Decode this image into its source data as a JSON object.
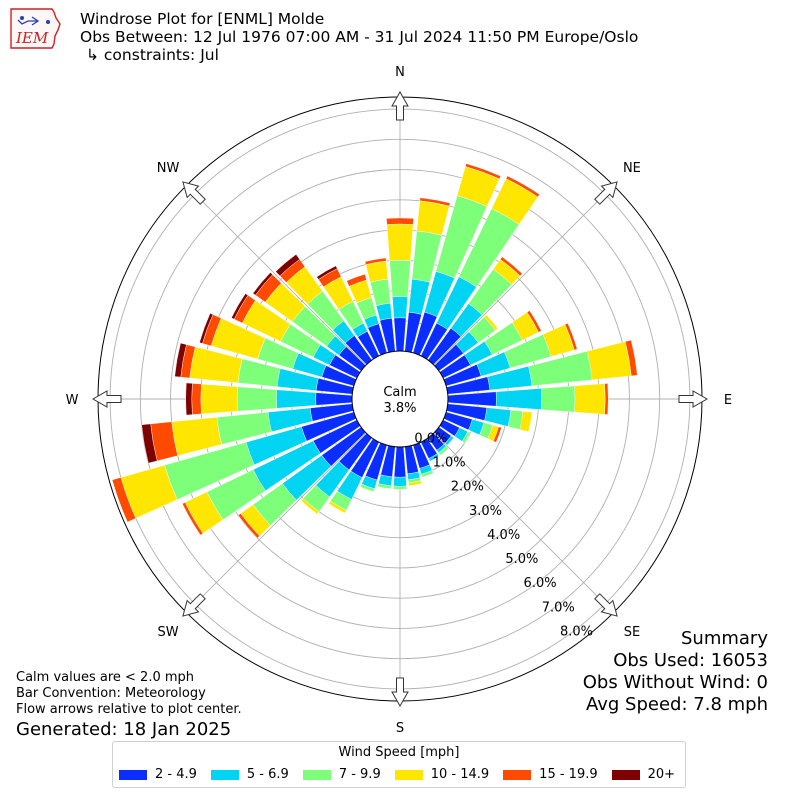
{
  "header": {
    "logo_text": "IEM",
    "title": "Windrose Plot for [ENML] Molde",
    "subtitle": "Obs Between: 12 Jul 1976 07:00 AM - 31 Jul 2024 11:50 PM Europe/Oslo",
    "constraints": "↳ constraints: Jul"
  },
  "center": {
    "label": "Calm",
    "value": "3.8%"
  },
  "summary": {
    "heading": "Summary",
    "obs_used": "Obs Used: 16053",
    "obs_without_wind": "Obs Without Wind: 0",
    "avg_speed": "Avg Speed: 7.8 mph"
  },
  "notes": {
    "line1": "Calm values are < 2.0 mph",
    "line2": "Bar Convention: Meteorology",
    "line3": "Flow arrows relative to plot center.",
    "generated": "Generated: 18 Jan 2025"
  },
  "legend": {
    "title": "Wind Speed [mph]",
    "items": [
      {
        "label": "2 - 4.9",
        "color": "#0a2eff"
      },
      {
        "label": "5 - 6.9",
        "color": "#00d4f2"
      },
      {
        "label": "7 - 9.9",
        "color": "#7dff7a"
      },
      {
        "label": "10 - 14.9",
        "color": "#ffe600"
      },
      {
        "label": "15 - 19.9",
        "color": "#ff4a00"
      },
      {
        "label": "20+",
        "color": "#7f0000"
      }
    ]
  },
  "chart_data": {
    "type": "windrose",
    "convention": "meteorology",
    "direction_labels": [
      "N",
      "NE",
      "E",
      "SE",
      "S",
      "SW",
      "W",
      "NW"
    ],
    "radial_ticks": [
      "0.0%",
      "1.0%",
      "2.0%",
      "3.0%",
      "4.0%",
      "5.0%",
      "6.0%",
      "7.0%",
      "8.0%"
    ],
    "rmax": 8.4,
    "calm_percent": 3.8,
    "speed_bins": [
      "2 - 4.9",
      "5 - 6.9",
      "7 - 9.9",
      "10 - 14.9",
      "15 - 19.9",
      "20+"
    ],
    "directions_deg": [
      0,
      10,
      20,
      30,
      40,
      50,
      60,
      70,
      80,
      90,
      100,
      110,
      120,
      130,
      140,
      150,
      160,
      170,
      180,
      190,
      200,
      210,
      220,
      230,
      240,
      250,
      260,
      270,
      280,
      290,
      300,
      310,
      320,
      330,
      340,
      350
    ],
    "cumulative_percent": [
      [
        1.1,
        1.8,
        3.0,
        4.2,
        4.4,
        4.4
      ],
      [
        1.3,
        2.4,
        4.0,
        5.0,
        5.1,
        5.1
      ],
      [
        1.4,
        2.8,
        5.4,
        6.4,
        6.5,
        6.5
      ],
      [
        1.2,
        2.9,
        5.4,
        6.5,
        6.6,
        6.6
      ],
      [
        1.3,
        2.3,
        3.7,
        4.1,
        4.2,
        4.2
      ],
      [
        1.0,
        1.6,
        2.3,
        2.4,
        2.4,
        2.4
      ],
      [
        1.0,
        1.8,
        2.9,
        3.5,
        3.6,
        3.6
      ],
      [
        1.2,
        2.2,
        3.6,
        4.4,
        4.5,
        4.5
      ],
      [
        1.4,
        2.8,
        4.8,
        6.1,
        6.3,
        6.3
      ],
      [
        1.6,
        3.1,
        4.2,
        5.2,
        5.3,
        5.3
      ],
      [
        1.3,
        2.1,
        2.5,
        2.8,
        2.8,
        2.8
      ],
      [
        0.9,
        1.3,
        1.6,
        1.8,
        1.9,
        1.9
      ],
      [
        0.6,
        0.9,
        1.0,
        1.0,
        1.0,
        1.0
      ],
      [
        0.5,
        0.6,
        0.6,
        0.6,
        0.6,
        0.6
      ],
      [
        0.5,
        0.6,
        0.7,
        0.7,
        0.7,
        0.7
      ],
      [
        0.6,
        0.7,
        0.7,
        0.7,
        0.7,
        0.7
      ],
      [
        0.8,
        1.0,
        1.1,
        1.1,
        1.1,
        1.1
      ],
      [
        0.9,
        1.1,
        1.2,
        1.3,
        1.3,
        1.3
      ],
      [
        1.0,
        1.3,
        1.4,
        1.4,
        1.4,
        1.4
      ],
      [
        1.0,
        1.3,
        1.4,
        1.4,
        1.4,
        1.4
      ],
      [
        1.2,
        1.5,
        1.6,
        1.6,
        1.6,
        1.6
      ],
      [
        1.3,
        2.1,
        2.5,
        2.6,
        2.6,
        2.6
      ],
      [
        1.3,
        2.4,
        3.0,
        3.1,
        3.1,
        3.1
      ],
      [
        1.6,
        3.2,
        4.4,
        4.9,
        5.0,
        5.0
      ],
      [
        1.6,
        3.8,
        5.5,
        6.3,
        6.4,
        6.4
      ],
      [
        1.8,
        3.7,
        6.5,
        8.0,
        8.3,
        8.3
      ],
      [
        1.4,
        2.8,
        4.5,
        6.0,
        6.7,
        7.0
      ],
      [
        1.2,
        2.5,
        3.8,
        5.0,
        5.3,
        5.5
      ],
      [
        1.2,
        2.5,
        3.8,
        5.4,
        5.7,
        5.9
      ],
      [
        1.1,
        2.1,
        3.3,
        4.9,
        5.2,
        5.3
      ],
      [
        1.0,
        1.6,
        2.8,
        4.2,
        4.5,
        4.6
      ],
      [
        0.9,
        1.4,
        2.8,
        3.9,
        4.3,
        4.4
      ],
      [
        1.0,
        1.6,
        2.8,
        3.8,
        4.1,
        4.3
      ],
      [
        0.9,
        1.2,
        2.0,
        2.9,
        3.2,
        3.3
      ],
      [
        1.0,
        1.3,
        1.9,
        2.5,
        2.7,
        2.7
      ],
      [
        1.1,
        1.6,
        2.4,
        3.0,
        3.1,
        3.1
      ]
    ]
  }
}
